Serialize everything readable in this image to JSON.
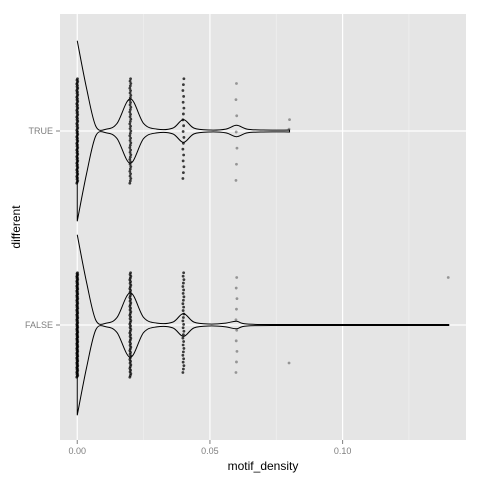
{
  "chart_data": {
    "type": "violin",
    "orientation": "horizontal",
    "title": "",
    "xlabel": "motif_density",
    "ylabel": "different",
    "xlim": [
      -0.0065,
      0.1465
    ],
    "x_ticks": [
      0.0,
      0.05,
      0.1
    ],
    "x_tick_labels": [
      "0.00",
      "0.05",
      "0.10"
    ],
    "categories": [
      "FALSE",
      "TRUE"
    ],
    "grid": true,
    "legend": "none",
    "colors": {
      "panel_background": "#e5e5e5",
      "grid_major": "#ffffff",
      "grid_minor": "#f2f2f2",
      "violin_line": "#000000",
      "points": "#000000",
      "tick_label": "#7f7f7f"
    },
    "series": [
      {
        "category": "TRUE",
        "density_profile": [
          [
            0.0,
            0.95
          ],
          [
            0.0035,
            0.45
          ],
          [
            0.007,
            0.05
          ],
          [
            0.011,
            0.02
          ],
          [
            0.015,
            0.08
          ],
          [
            0.02,
            0.34
          ],
          [
            0.025,
            0.08
          ],
          [
            0.03,
            0.02
          ],
          [
            0.036,
            0.03
          ],
          [
            0.04,
            0.12
          ],
          [
            0.044,
            0.03
          ],
          [
            0.05,
            0.01
          ],
          [
            0.056,
            0.02
          ],
          [
            0.06,
            0.06
          ],
          [
            0.064,
            0.02
          ],
          [
            0.07,
            0.01
          ],
          [
            0.08,
            0.01
          ]
        ],
        "points": [
          {
            "x": 0.0,
            "y_spread": [
              -0.55,
              0.55
            ],
            "count": 80
          },
          {
            "x": 0.02,
            "y_spread": [
              -0.55,
              0.55
            ],
            "count": 45
          },
          {
            "x": 0.04,
            "y_spread": [
              -0.5,
              0.55
            ],
            "count": 18
          },
          {
            "x": 0.06,
            "y_spread": [
              -0.52,
              0.5
            ],
            "count": 7
          },
          {
            "x": 0.08,
            "y_spread": [
              0.02,
              0.12
            ],
            "count": 2
          }
        ]
      },
      {
        "category": "FALSE",
        "density_profile": [
          [
            0.0,
            0.95
          ],
          [
            0.0035,
            0.45
          ],
          [
            0.007,
            0.05
          ],
          [
            0.011,
            0.02
          ],
          [
            0.015,
            0.08
          ],
          [
            0.02,
            0.34
          ],
          [
            0.025,
            0.08
          ],
          [
            0.03,
            0.02
          ],
          [
            0.036,
            0.03
          ],
          [
            0.04,
            0.12
          ],
          [
            0.044,
            0.03
          ],
          [
            0.05,
            0.01
          ],
          [
            0.056,
            0.02
          ],
          [
            0.06,
            0.04
          ],
          [
            0.064,
            0.01
          ],
          [
            0.08,
            0.005
          ],
          [
            0.14,
            0.005
          ]
        ],
        "points": [
          {
            "x": 0.0,
            "y_spread": [
              -0.55,
              0.55
            ],
            "count": 110
          },
          {
            "x": 0.02,
            "y_spread": [
              -0.55,
              0.55
            ],
            "count": 60
          },
          {
            "x": 0.04,
            "y_spread": [
              -0.5,
              0.55
            ],
            "count": 30
          },
          {
            "x": 0.06,
            "y_spread": [
              -0.5,
              0.5
            ],
            "count": 10
          },
          {
            "x": 0.08,
            "y_spread": [
              -0.4,
              -0.4
            ],
            "count": 1
          },
          {
            "x": 0.14,
            "y_spread": [
              0.5,
              0.5
            ],
            "count": 1
          }
        ]
      }
    ]
  }
}
